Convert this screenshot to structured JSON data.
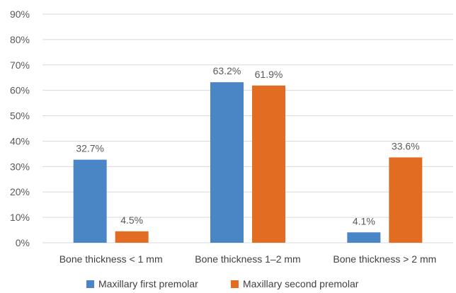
{
  "chart_data": {
    "type": "bar",
    "categories": [
      "Bone thickness < 1 mm",
      "Bone thickness 1–2 mm",
      "Bone thickness > 2 mm"
    ],
    "series": [
      {
        "name": "Maxillary first premolar",
        "color": "#4A86C6",
        "values": [
          32.7,
          63.2,
          4.1
        ],
        "labels": [
          "32.7%",
          "63.2%",
          "4.1%"
        ]
      },
      {
        "name": "Maxillary second premolar",
        "color": "#E26C22",
        "values": [
          4.5,
          61.9,
          33.6
        ],
        "labels": [
          "4.5%",
          "61.9%",
          "33.6%"
        ]
      }
    ],
    "y_ticks": [
      "0%",
      "10%",
      "20%",
      "30%",
      "40%",
      "50%",
      "60%",
      "70%",
      "80%",
      "90%"
    ],
    "ylim": [
      0,
      90
    ],
    "grid": true,
    "legend_position": "bottom",
    "title": "",
    "xlabel": "",
    "ylabel": ""
  }
}
